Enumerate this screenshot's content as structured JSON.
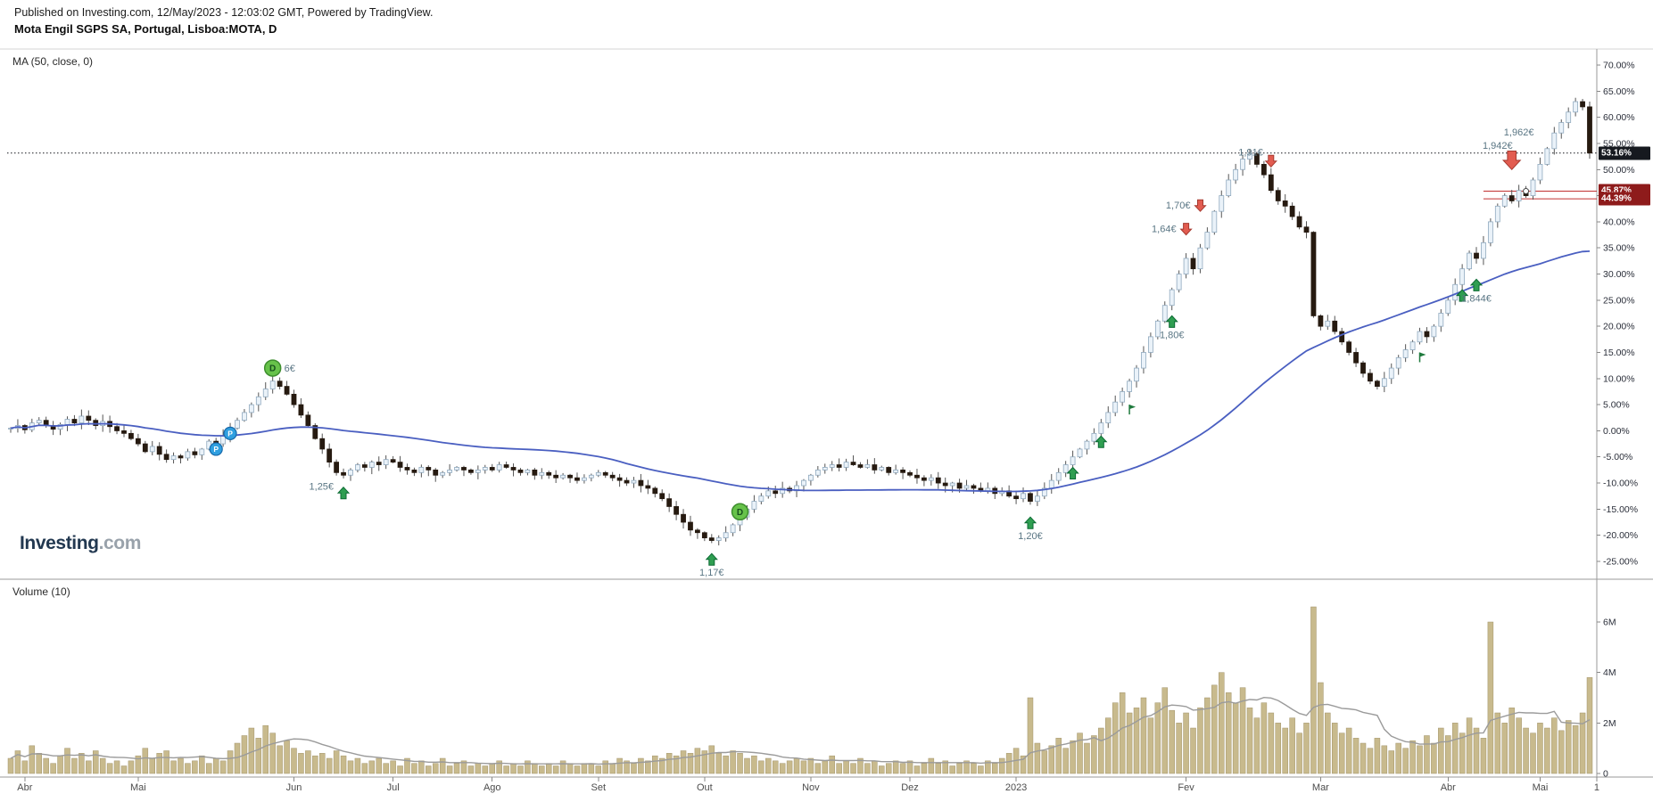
{
  "header": {
    "published": "Published on Investing.com, 12/May/2023 - 12:03:02 GMT, Powered by TradingView.",
    "instrument": "Mota Engil SGPS SA, Portugal, Lisboa:MOTA, D"
  },
  "main_pane": {
    "indicator_label": "MA (50, close, 0)",
    "logo_bold": "Investing",
    "logo_light": ".com"
  },
  "volume_pane": {
    "indicator_label": "Volume (10)"
  },
  "colors": {
    "up_fill": "#eaf2f9",
    "up_border": "#90a9be",
    "down": "#261a10",
    "wick": "#555555",
    "ma": "#4a5fc1",
    "volume_bar": "#c8ba8d",
    "volume_bar_border": "#a2946a",
    "volume_ma": "#9b9b9b",
    "marker_green": "#2f9e51",
    "marker_green_border": "#0b6a33",
    "marker_red": "#e25c50",
    "marker_red_border": "#a63a30",
    "annotation_text": "#5a7684",
    "axis_text": "#2a2e39",
    "time_text": "#4c4c4c",
    "badge_black": "#16191f",
    "badge_red": "#8e1b1b",
    "red_line": "#c03030",
    "separator": "#9a9a9a"
  },
  "chart_data": {
    "type": "candlestick",
    "title": "Mota Engil SGPS SA (Lisboa:MOTA) daily % change, Apr 2022 - May 2023, with MA(50) overlay and Volume(10) pane",
    "y_axis": {
      "unit": "%",
      "min": -25,
      "max": 70,
      "tick_step": 5,
      "tick_values": [
        70,
        65,
        60,
        55,
        50,
        45,
        40,
        35,
        30,
        25,
        20,
        15,
        10,
        5,
        0,
        -5,
        -10,
        -15,
        -20,
        -25
      ],
      "tick_labels": [
        "70.00%",
        "65.00%",
        "60.00%",
        "55.00%",
        "50.00%",
        "45.00%",
        "40.00%",
        "35.00%",
        "30.00%",
        "25.00%",
        "20.00%",
        "15.00%",
        "10.00%",
        "5.00%",
        "0.00%",
        "-5.00%",
        "-10.00%",
        "-15.00%",
        "-20.00%",
        "-25.00%"
      ]
    },
    "volume_axis": {
      "tick_values": [
        6,
        4,
        2,
        0
      ],
      "tick_labels": [
        "6M",
        "4M",
        "2M",
        "0"
      ]
    },
    "x_axis": {
      "months": [
        {
          "label": "Abr",
          "i": 2
        },
        {
          "label": "Mai",
          "i": 18
        },
        {
          "label": "Jun",
          "i": 40
        },
        {
          "label": "Jul",
          "i": 54
        },
        {
          "label": "Ago",
          "i": 68
        },
        {
          "label": "Set",
          "i": 83
        },
        {
          "label": "Out",
          "i": 98
        },
        {
          "label": "Nov",
          "i": 113
        },
        {
          "label": "Dez",
          "i": 127
        },
        {
          "label": "2023",
          "i": 142
        },
        {
          "label": "Fev",
          "i": 166
        },
        {
          "label": "Mar",
          "i": 185
        },
        {
          "label": "Abr",
          "i": 203
        },
        {
          "label": "Mai",
          "i": 216
        },
        {
          "label": "1",
          "i": 224
        }
      ]
    },
    "closes": [
      0.5,
      1,
      0.2,
      1.5,
      2,
      1,
      0.3,
      1.2,
      2.2,
      1.5,
      2.8,
      2,
      1,
      1.8,
      0.8,
      0,
      -0.5,
      -1.5,
      -2.5,
      -4,
      -3,
      -4.5,
      -5.5,
      -4.8,
      -5.2,
      -4,
      -4.6,
      -3.5,
      -2,
      -2.5,
      -1,
      0.5,
      2,
      3.5,
      5,
      6.5,
      8,
      9.5,
      8.5,
      7,
      5,
      3,
      1,
      -1.5,
      -3.5,
      -6,
      -8,
      -8.5,
      -7.5,
      -6.5,
      -7,
      -6,
      -6.5,
      -5.5,
      -6,
      -7,
      -7.5,
      -8,
      -7,
      -7.5,
      -8.5,
      -8,
      -7.5,
      -7,
      -7.5,
      -8,
      -7.5,
      -7,
      -7.5,
      -6.5,
      -7,
      -7.5,
      -8,
      -7.5,
      -8.5,
      -8,
      -8.5,
      -9,
      -8.5,
      -9,
      -9.5,
      -9,
      -8.5,
      -8,
      -8.5,
      -9,
      -9.5,
      -10,
      -9.5,
      -10.5,
      -11,
      -12,
      -13,
      -14.5,
      -16,
      -17.5,
      -19,
      -19.5,
      -20.5,
      -21,
      -20.5,
      -19.5,
      -18,
      -16.5,
      -15,
      -13.5,
      -12.5,
      -11.5,
      -12,
      -11,
      -11.5,
      -10.5,
      -9.5,
      -8.5,
      -7.5,
      -7,
      -6.5,
      -7,
      -6,
      -6.5,
      -7,
      -6.5,
      -7.5,
      -7,
      -8,
      -7.5,
      -8,
      -8.5,
      -9,
      -9.5,
      -9,
      -10,
      -10.5,
      -10,
      -11,
      -10.5,
      -11,
      -11.5,
      -11,
      -12,
      -11.5,
      -12.5,
      -13,
      -12,
      -13.5,
      -12.5,
      -11,
      -9.5,
      -8,
      -6.5,
      -5,
      -3.5,
      -2,
      -0.5,
      1.5,
      3.5,
      5.5,
      7.5,
      9.5,
      12,
      15,
      18,
      21,
      24,
      27,
      30,
      33,
      31,
      35,
      38,
      42,
      45,
      48,
      50,
      52,
      53,
      51,
      49,
      46,
      44,
      43,
      41,
      39,
      38,
      22,
      20,
      21,
      19,
      17,
      15,
      13,
      11,
      9.5,
      8.5,
      10,
      12,
      14,
      15.5,
      17,
      19,
      18,
      20,
      22.5,
      25,
      28,
      31,
      34,
      33,
      36,
      40,
      43,
      45,
      44,
      46,
      45,
      48,
      51,
      54,
      57,
      59,
      61,
      63,
      62,
      53.16
    ],
    "volumes_m": [
      0.6,
      0.9,
      0.5,
      1.1,
      0.8,
      0.6,
      0.4,
      0.7,
      1,
      0.6,
      0.8,
      0.5,
      0.9,
      0.6,
      0.4,
      0.5,
      0.3,
      0.5,
      0.7,
      1,
      0.6,
      0.8,
      0.9,
      0.5,
      0.6,
      0.4,
      0.5,
      0.7,
      0.4,
      0.6,
      0.5,
      0.9,
      1.2,
      1.5,
      1.8,
      1.4,
      1.9,
      1.6,
      1.1,
      1.3,
      1,
      0.8,
      0.9,
      0.7,
      0.8,
      0.6,
      0.9,
      0.7,
      0.5,
      0.6,
      0.4,
      0.5,
      0.6,
      0.4,
      0.5,
      0.3,
      0.6,
      0.4,
      0.5,
      0.3,
      0.4,
      0.6,
      0.3,
      0.4,
      0.5,
      0.3,
      0.4,
      0.3,
      0.4,
      0.5,
      0.3,
      0.4,
      0.3,
      0.5,
      0.4,
      0.3,
      0.4,
      0.3,
      0.5,
      0.4,
      0.3,
      0.4,
      0.4,
      0.3,
      0.5,
      0.4,
      0.6,
      0.5,
      0.4,
      0.6,
      0.5,
      0.7,
      0.6,
      0.8,
      0.7,
      0.9,
      0.8,
      1,
      0.9,
      1.1,
      0.8,
      0.7,
      0.9,
      0.8,
      0.6,
      0.7,
      0.5,
      0.6,
      0.5,
      0.4,
      0.5,
      0.6,
      0.5,
      0.6,
      0.4,
      0.5,
      0.7,
      0.4,
      0.5,
      0.4,
      0.6,
      0.4,
      0.5,
      0.3,
      0.4,
      0.5,
      0.4,
      0.5,
      0.3,
      0.4,
      0.6,
      0.4,
      0.5,
      0.3,
      0.4,
      0.5,
      0.4,
      0.3,
      0.5,
      0.4,
      0.6,
      0.8,
      1,
      0.7,
      3,
      1.2,
      0.9,
      1.1,
      1.4,
      1,
      1.3,
      1.6,
      1.2,
      1.5,
      1.8,
      2.2,
      2.8,
      3.2,
      2.4,
      2.6,
      3,
      2.2,
      2.8,
      3.4,
      2.5,
      2,
      2.4,
      1.8,
      2.6,
      3,
      3.5,
      4,
      3.2,
      2.8,
      3.4,
      2.6,
      2.2,
      2.8,
      2.4,
      2,
      1.8,
      2.2,
      1.6,
      2,
      6.6,
      3.6,
      2.4,
      2,
      1.6,
      1.8,
      1.4,
      1.2,
      1,
      1.4,
      1.1,
      0.9,
      1.2,
      1,
      1.3,
      1.1,
      1.5,
      1.2,
      1.8,
      1.5,
      2,
      1.6,
      2.2,
      1.8,
      1.4,
      6,
      2.4,
      2,
      2.6,
      2.2,
      1.8,
      1.6,
      2,
      1.8,
      2.2,
      1.7,
      2.1,
      1.9,
      2.4,
      3.8
    ],
    "overlays": [
      {
        "name": "MA",
        "params": [
          50,
          "close",
          0
        ],
        "color_key": "ma"
      },
      {
        "name": "Volume MA",
        "params": [
          10
        ],
        "color_key": "volume_ma"
      }
    ],
    "price_lines": [
      {
        "value": 53.16,
        "label": "53.16%",
        "style": "dotted",
        "badge": "black",
        "span": "full"
      },
      {
        "value": 45.87,
        "label": "45.87%",
        "style": "solid",
        "badge": "red",
        "span": "right"
      },
      {
        "value": 44.39,
        "label": "44.39%",
        "style": "solid",
        "badge": "red",
        "span": "right"
      }
    ],
    "markers": [
      {
        "type": "circle-p",
        "i": 29,
        "y": -3.5
      },
      {
        "type": "circle-p",
        "i": 31,
        "y": -0.5
      },
      {
        "type": "circle-d",
        "i": 37,
        "y": 12,
        "label": "6€",
        "label_side": "right"
      },
      {
        "type": "arrow-up",
        "i": 47,
        "y": -10.8,
        "label": "1,25€",
        "label_side": "left"
      },
      {
        "type": "arrow-up",
        "i": 99,
        "y": -23.5,
        "label": "1,17€",
        "label_side": "below"
      },
      {
        "type": "circle-d",
        "i": 103,
        "y": -15.5
      },
      {
        "type": "arrow-up",
        "i": 144,
        "y": -16.5,
        "label": "1,20€",
        "label_side": "below"
      },
      {
        "type": "arrow-up",
        "i": 150,
        "y": -7
      },
      {
        "type": "arrow-up",
        "i": 154,
        "y": -1
      },
      {
        "type": "flag",
        "i": 158,
        "y": 5
      },
      {
        "type": "arrow-up",
        "i": 164,
        "y": 22,
        "label": "1,80€",
        "label_side": "below"
      },
      {
        "type": "arrow-down",
        "i": 166,
        "y": 37.5,
        "label": "1,64€",
        "label_side": "left"
      },
      {
        "type": "arrow-down",
        "i": 168,
        "y": 42,
        "label": "1,70€",
        "label_side": "left"
      },
      {
        "type": "arrow-down",
        "i": 178,
        "y": 50.5,
        "label": "1,91€",
        "label_side": "above-left"
      },
      {
        "type": "flag",
        "i": 199,
        "y": 15
      },
      {
        "type": "arrow-up",
        "i": 205,
        "y": 27
      },
      {
        "type": "arrow-up",
        "i": 207,
        "y": 29,
        "label": "1,844€",
        "label_side": "below"
      },
      {
        "type": "arrow-down-big",
        "i": 212,
        "y": 50
      },
      {
        "type": "dot",
        "i": 214,
        "y": 45.87
      },
      {
        "type": "text",
        "i": 210,
        "y": 54,
        "label": "1,942€"
      },
      {
        "type": "text",
        "i": 213,
        "y": 56.5,
        "label": "1,962€"
      }
    ]
  }
}
